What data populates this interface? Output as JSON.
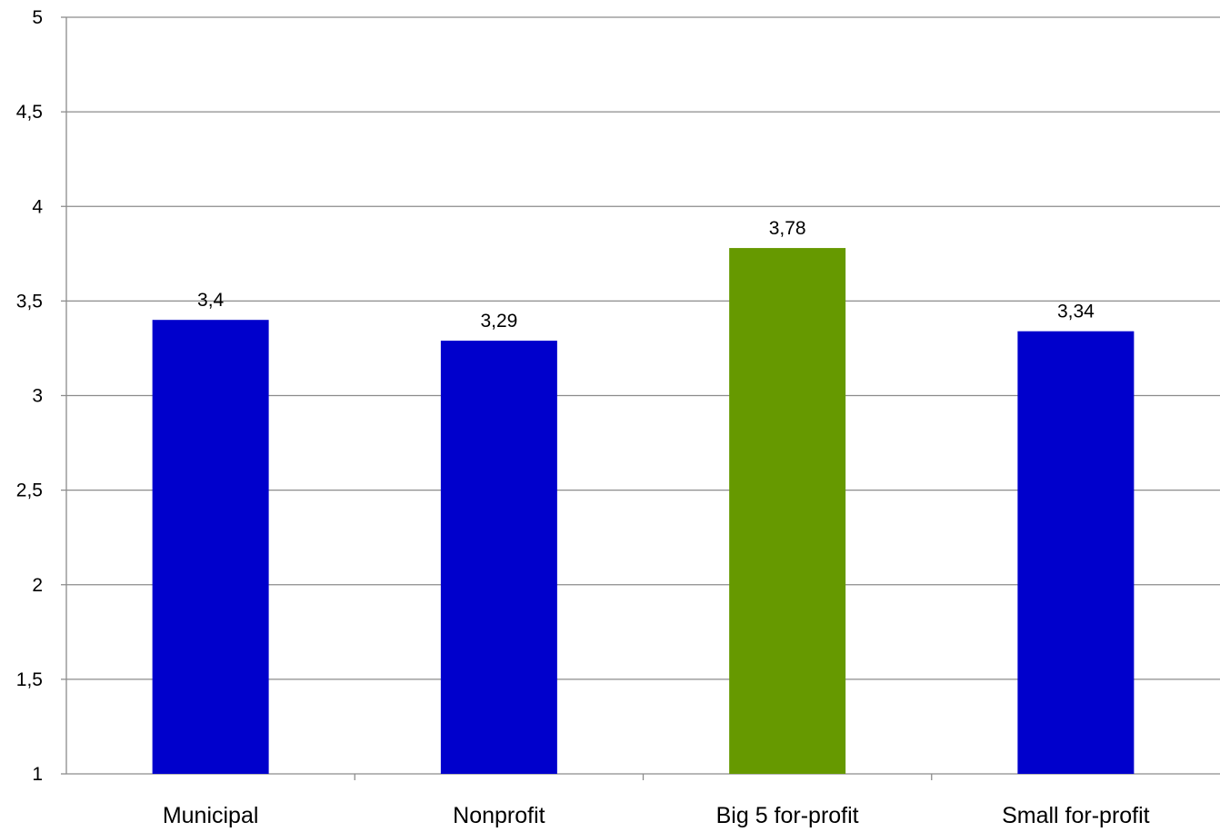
{
  "chart_data": {
    "type": "bar",
    "title": "",
    "xlabel": "",
    "ylabel": "",
    "categories": [
      "Municipal",
      "Nonprofit",
      "Big 5 for-profit",
      "Small for-profit"
    ],
    "values": [
      3.4,
      3.29,
      3.78,
      3.34
    ],
    "data_labels": [
      "3,4",
      "3,29",
      "3,78",
      "3,34"
    ],
    "bar_colors": [
      "#0000cc",
      "#0000cc",
      "#669900",
      "#0000cc"
    ],
    "ylim": [
      1,
      5
    ],
    "y_ticks": [
      1,
      1.5,
      2,
      2.5,
      3,
      3.5,
      4,
      4.5,
      5
    ],
    "y_tick_labels": [
      "1",
      "1,5",
      "2",
      "2,5",
      "3",
      "3,5",
      "4",
      "4,5",
      "5"
    ],
    "grid": true,
    "legend": "none",
    "gridline_color": "#8c8c8c"
  }
}
